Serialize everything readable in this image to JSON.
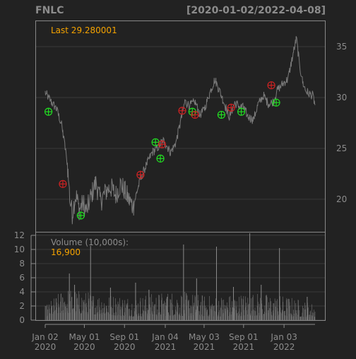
{
  "header": {
    "symbol": "FNLC",
    "date_range": "[2020-01-02/2022-04-08]"
  },
  "colors": {
    "background": "#222222",
    "panel_border": "#888888",
    "grid": "#3a3a3a",
    "price_line": "#7a7a7a",
    "title_text": "#8c8c8c",
    "accent": "#f5a300",
    "buy_marker": "#22dd22",
    "sell_marker": "#cc2222",
    "volume_bar": "#6a6a6a",
    "axis_text": "#8c8c8c"
  },
  "chart_data": [
    {
      "type": "line",
      "title": "FNLC",
      "subtitle": "[2020-01-02/2022-04-08]",
      "annotation": "Last 29.280001",
      "y_ticks": [
        20,
        25,
        30,
        35
      ],
      "ylim": [
        16.8,
        37.5
      ],
      "grid": true,
      "y_axis_side": "right",
      "x_ticks": [
        {
          "date": "2020-01-02",
          "label": "Jan 02\n2020"
        },
        {
          "date": "2020-05-01",
          "label": "May 01\n2020"
        },
        {
          "date": "2020-09-01",
          "label": "Sep 01\n2020"
        },
        {
          "date": "2021-01-04",
          "label": "Jan 04\n2021"
        },
        {
          "date": "2021-05-03",
          "label": "May 03\n2021"
        },
        {
          "date": "2021-09-01",
          "label": "Sep 01\n2021"
        },
        {
          "date": "2022-01-03",
          "label": "Jan 03\n2022"
        }
      ],
      "series": [
        {
          "values": [
            [
              "2020-01-02",
              30.5
            ],
            [
              "2020-01-20",
              29.6
            ],
            [
              "2020-02-05",
              28.9
            ],
            [
              "2020-02-20",
              27.5
            ],
            [
              "2020-03-01",
              25.5
            ],
            [
              "2020-03-10",
              23.5
            ],
            [
              "2020-03-18",
              19.8
            ],
            [
              "2020-03-25",
              18.6
            ],
            [
              "2020-04-05",
              20.5
            ],
            [
              "2020-04-15",
              19.0
            ],
            [
              "2020-04-28",
              19.6
            ],
            [
              "2020-05-08",
              18.8
            ],
            [
              "2020-05-20",
              20.2
            ],
            [
              "2020-06-05",
              21.6
            ],
            [
              "2020-06-20",
              19.8
            ],
            [
              "2020-07-05",
              20.7
            ],
            [
              "2020-07-20",
              21.2
            ],
            [
              "2020-08-05",
              20.4
            ],
            [
              "2020-08-20",
              21.5
            ],
            [
              "2020-09-01",
              20.9
            ],
            [
              "2020-09-15",
              19.9
            ],
            [
              "2020-09-28",
              19.3
            ],
            [
              "2020-10-10",
              20.9
            ],
            [
              "2020-10-25",
              22.4
            ],
            [
              "2020-11-10",
              23.6
            ],
            [
              "2020-11-25",
              24.6
            ],
            [
              "2020-12-10",
              25.0
            ],
            [
              "2020-12-28",
              25.8
            ],
            [
              "2021-01-04",
              25.5
            ],
            [
              "2021-01-20",
              24.6
            ],
            [
              "2021-02-05",
              25.5
            ],
            [
              "2021-02-20",
              27.6
            ],
            [
              "2021-03-05",
              29.6
            ],
            [
              "2021-03-20",
              29.2
            ],
            [
              "2021-04-05",
              29.6
            ],
            [
              "2021-04-20",
              28.3
            ],
            [
              "2021-05-03",
              28.8
            ],
            [
              "2021-05-20",
              30.4
            ],
            [
              "2021-06-05",
              31.8
            ],
            [
              "2021-06-20",
              30.6
            ],
            [
              "2021-07-05",
              29.3
            ],
            [
              "2021-07-20",
              28.1
            ],
            [
              "2021-08-05",
              29.5
            ],
            [
              "2021-08-20",
              29.1
            ],
            [
              "2021-09-01",
              29.0
            ],
            [
              "2021-09-15",
              28.1
            ],
            [
              "2021-10-01",
              27.8
            ],
            [
              "2021-10-15",
              29.3
            ],
            [
              "2021-11-01",
              30.2
            ],
            [
              "2021-11-15",
              29.4
            ],
            [
              "2021-12-01",
              29.6
            ],
            [
              "2021-12-15",
              30.8
            ],
            [
              "2022-01-03",
              31.5
            ],
            [
              "2022-01-15",
              31.8
            ],
            [
              "2022-02-01",
              34.5
            ],
            [
              "2022-02-10",
              35.8
            ],
            [
              "2022-02-20",
              33.1
            ],
            [
              "2022-03-01",
              31.5
            ],
            [
              "2022-03-10",
              30.7
            ],
            [
              "2022-03-20",
              30.4
            ],
            [
              "2022-04-01",
              30.2
            ],
            [
              "2022-04-08",
              29.28
            ]
          ]
        }
      ],
      "buy_markers": [
        [
          "2020-01-12",
          28.6
        ],
        [
          "2020-04-20",
          18.4
        ],
        [
          "2020-12-05",
          25.6
        ],
        [
          "2020-12-20",
          24.0
        ],
        [
          "2021-03-28",
          28.6
        ],
        [
          "2021-06-25",
          28.3
        ],
        [
          "2021-08-25",
          28.6
        ],
        [
          "2021-12-10",
          29.5
        ]
      ],
      "sell_markers": [
        [
          "2020-02-25",
          21.5
        ],
        [
          "2020-10-20",
          22.4
        ],
        [
          "2020-12-25",
          25.4
        ],
        [
          "2021-02-25",
          28.7
        ],
        [
          "2021-04-05",
          28.3
        ],
        [
          "2021-07-25",
          29.0
        ],
        [
          "2021-11-25",
          31.2
        ]
      ]
    },
    {
      "type": "bar",
      "title": "Volume (10,000s):",
      "annotation": "16,900",
      "y_ticks": [
        0,
        2,
        4,
        6,
        8,
        10,
        12
      ],
      "ylim": [
        0,
        12.4
      ],
      "y_axis_side": "left",
      "grid": true,
      "spikes": [
        [
          "2020-03-16",
          6.6
        ],
        [
          "2020-04-01",
          5.0
        ],
        [
          "2020-05-20",
          10.5
        ],
        [
          "2020-07-20",
          4.6
        ],
        [
          "2020-10-05",
          5.3
        ],
        [
          "2020-11-15",
          4.3
        ],
        [
          "2021-01-10",
          3.3
        ],
        [
          "2021-03-01",
          10.7
        ],
        [
          "2021-04-10",
          5.9
        ],
        [
          "2021-06-10",
          10.4
        ],
        [
          "2021-08-01",
          4.7
        ],
        [
          "2021-09-20",
          12.3
        ],
        [
          "2021-10-25",
          5.0
        ],
        [
          "2021-12-20",
          10.2
        ],
        [
          "2022-03-15",
          3.3
        ]
      ],
      "typical_ranges": [
        [
          "2020-01-02",
          0.5,
          1.6
        ],
        [
          "2020-03-01",
          1.0,
          3.6
        ],
        [
          "2020-06-01",
          0.8,
          3.0
        ],
        [
          "2020-10-01",
          0.5,
          2.6
        ],
        [
          "2021-02-01",
          0.6,
          3.2
        ],
        [
          "2021-06-01",
          0.5,
          2.6
        ],
        [
          "2021-10-01",
          0.6,
          3.0
        ],
        [
          "2022-01-15",
          0.5,
          2.6
        ],
        [
          "2022-04-08",
          0.4,
          1.8
        ]
      ]
    }
  ]
}
